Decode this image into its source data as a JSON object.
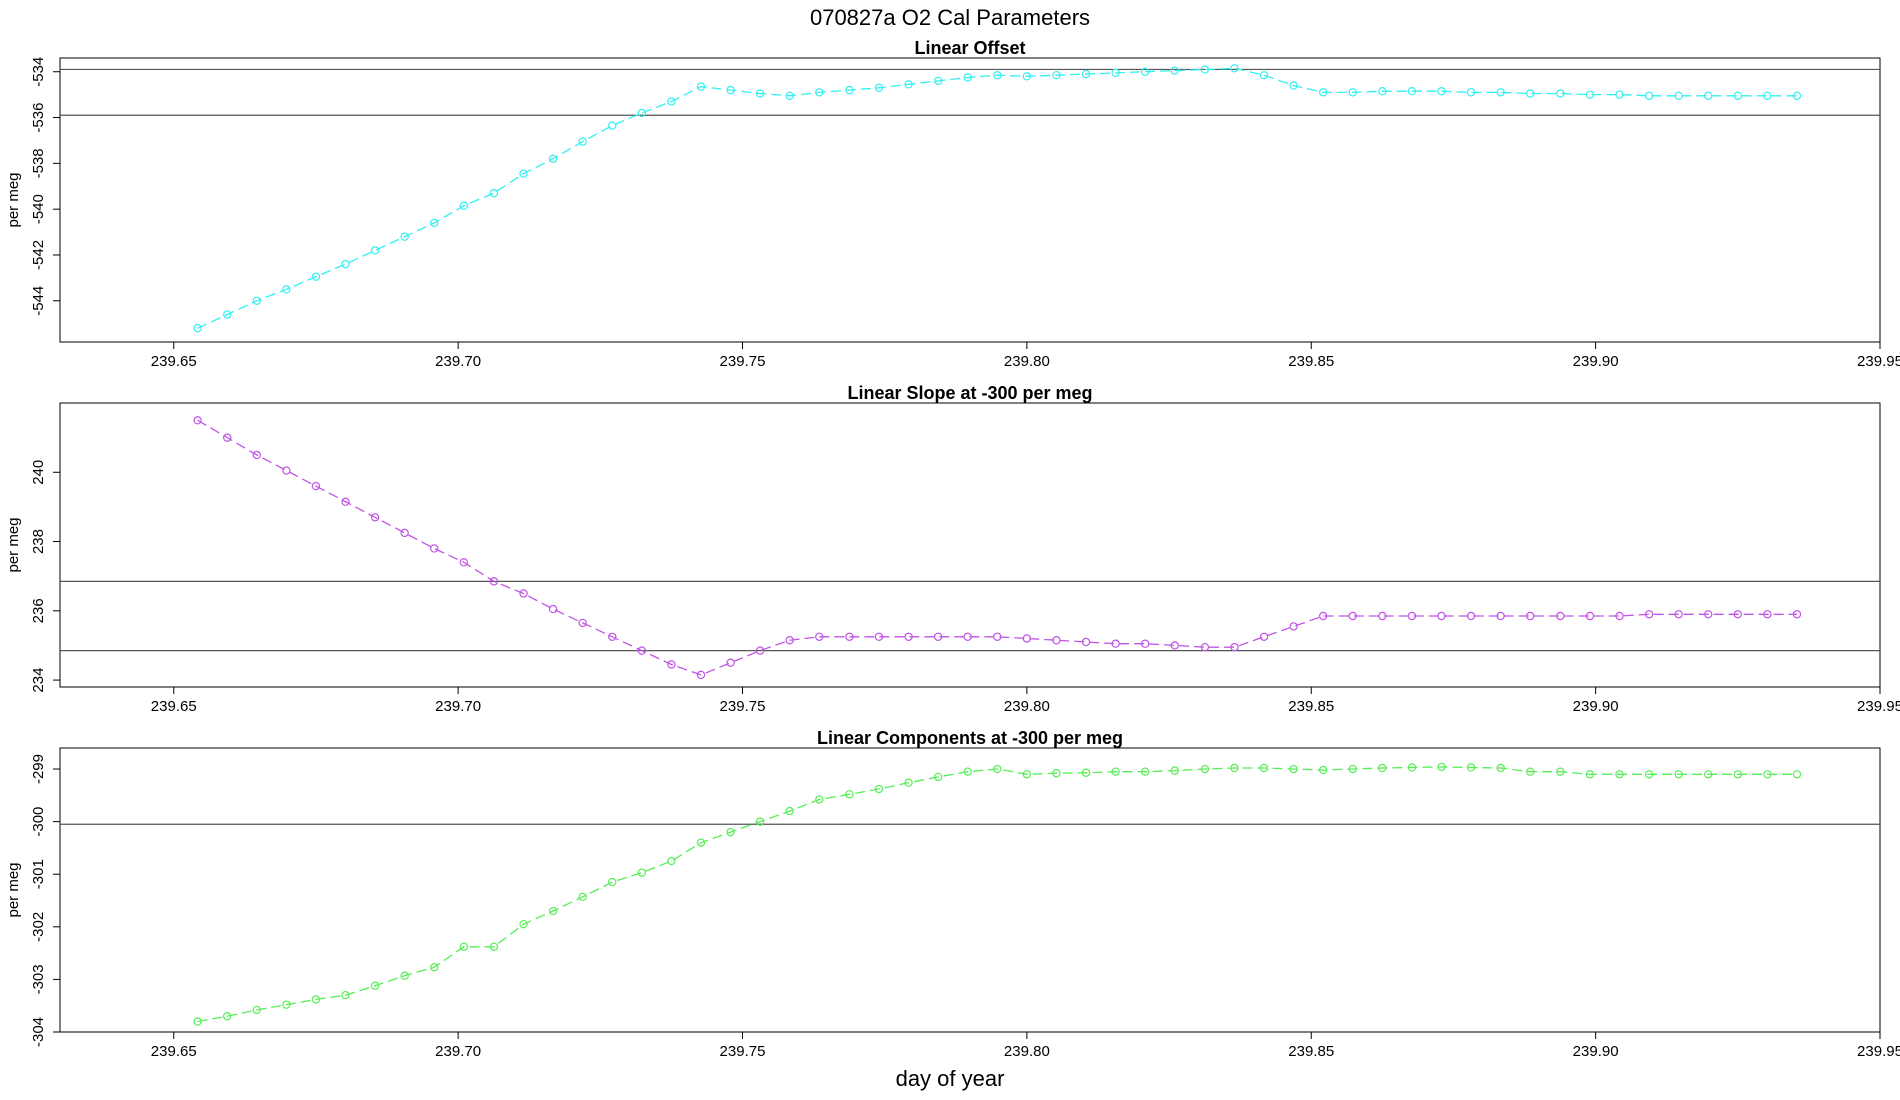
{
  "figure": {
    "title": "070827a   O2 Cal Parameters",
    "xlabel": "day of year"
  },
  "chart_data": [
    {
      "type": "line",
      "title": "Linear Offset",
      "ylabel": "per meg",
      "color": "#33f0f0",
      "xlim": [
        239.63,
        239.95
      ],
      "ylim": [
        -545.8,
        -533.4
      ],
      "xticks": [
        "239.65",
        "239.70",
        "239.75",
        "239.80",
        "239.85",
        "239.90",
        "239.95"
      ],
      "yticks": [
        "-544",
        "-542",
        "-540",
        "-538",
        "-536",
        "-534"
      ],
      "hlines": [
        -533.9,
        -535.9
      ],
      "x": [
        239.6542,
        239.6594,
        239.6646,
        239.6698,
        239.675,
        239.6802,
        239.6854,
        239.6906,
        239.6958,
        239.701,
        239.7063,
        239.7115,
        239.7167,
        239.7219,
        239.7271,
        239.7323,
        239.7375,
        239.7427,
        239.7479,
        239.7531,
        239.7583,
        239.7635,
        239.7688,
        239.774,
        239.7792,
        239.7844,
        239.7896,
        239.7948,
        239.8,
        239.8052,
        239.8104,
        239.8156,
        239.8208,
        239.826,
        239.8313,
        239.8365,
        239.8417,
        239.8469,
        239.8521,
        239.8573,
        239.8625,
        239.8677,
        239.8729,
        239.8781,
        239.8833,
        239.8885,
        239.8938,
        239.899,
        239.9042,
        239.9094,
        239.9146,
        239.9198,
        239.925,
        239.9302,
        239.9354
      ],
      "y": [
        -545.2,
        -544.6,
        -544.0,
        -543.5,
        -542.95,
        -542.4,
        -541.8,
        -541.2,
        -540.6,
        -539.85,
        -539.3,
        -538.45,
        -537.8,
        -537.05,
        -536.35,
        -535.8,
        -535.3,
        -534.65,
        -534.8,
        -534.95,
        -535.05,
        -534.9,
        -534.8,
        -534.7,
        -534.55,
        -534.4,
        -534.25,
        -534.15,
        -534.2,
        -534.15,
        -534.1,
        -534.05,
        -534.0,
        -533.95,
        -533.9,
        -533.85,
        -534.15,
        -534.6,
        -534.9,
        -534.9,
        -534.85,
        -534.85,
        -534.85,
        -534.9,
        -534.9,
        -534.95,
        -534.95,
        -535.0,
        -535.0,
        -535.05,
        -535.05,
        -535.05,
        -535.05,
        -535.05,
        -535.05
      ]
    },
    {
      "type": "line",
      "title": "Linear Slope at -300 per meg",
      "ylabel": "per meg",
      "color": "#c154e6",
      "xlim": [
        239.63,
        239.95
      ],
      "ylim": [
        233.8,
        242.0
      ],
      "xticks": [
        "239.65",
        "239.70",
        "239.75",
        "239.80",
        "239.85",
        "239.90",
        "239.95"
      ],
      "yticks": [
        "234",
        "236",
        "238",
        "240"
      ],
      "hlines": [
        236.85,
        234.85
      ],
      "x": [
        239.6542,
        239.6594,
        239.6646,
        239.6698,
        239.675,
        239.6802,
        239.6854,
        239.6906,
        239.6958,
        239.701,
        239.7063,
        239.7115,
        239.7167,
        239.7219,
        239.7271,
        239.7323,
        239.7375,
        239.7427,
        239.7479,
        239.7531,
        239.7583,
        239.7635,
        239.7688,
        239.774,
        239.7792,
        239.7844,
        239.7896,
        239.7948,
        239.8,
        239.8052,
        239.8104,
        239.8156,
        239.8208,
        239.826,
        239.8313,
        239.8365,
        239.8417,
        239.8469,
        239.8521,
        239.8573,
        239.8625,
        239.8677,
        239.8729,
        239.8781,
        239.8833,
        239.8885,
        239.8938,
        239.899,
        239.9042,
        239.9094,
        239.9146,
        239.9198,
        239.925,
        239.9302,
        239.9354
      ],
      "y": [
        241.5,
        241.0,
        240.5,
        240.05,
        239.6,
        239.15,
        238.7,
        238.25,
        237.8,
        237.4,
        236.85,
        236.5,
        236.05,
        235.65,
        235.25,
        234.85,
        234.45,
        234.15,
        234.5,
        234.85,
        235.15,
        235.25,
        235.25,
        235.25,
        235.25,
        235.25,
        235.25,
        235.25,
        235.2,
        235.15,
        235.1,
        235.05,
        235.05,
        235.0,
        234.95,
        234.95,
        235.25,
        235.55,
        235.85,
        235.85,
        235.85,
        235.85,
        235.85,
        235.85,
        235.85,
        235.85,
        235.85,
        235.85,
        235.85,
        235.9,
        235.9,
        235.9,
        235.9,
        235.9,
        235.9
      ]
    },
    {
      "type": "line",
      "title": "Linear Components at -300 per meg",
      "ylabel": "per meg",
      "color": "#55ee55",
      "xlim": [
        239.63,
        239.95
      ],
      "ylim": [
        -304.0,
        -298.6
      ],
      "xticks": [
        "239.65",
        "239.70",
        "239.75",
        "239.80",
        "239.85",
        "239.90",
        "239.95"
      ],
      "yticks": [
        "-304",
        "-303",
        "-302",
        "-301",
        "-300",
        "-299"
      ],
      "hlines": [
        -300.05
      ],
      "x": [
        239.6542,
        239.6594,
        239.6646,
        239.6698,
        239.675,
        239.6802,
        239.6854,
        239.6906,
        239.6958,
        239.701,
        239.7063,
        239.7115,
        239.7167,
        239.7219,
        239.7271,
        239.7323,
        239.7375,
        239.7427,
        239.7479,
        239.7531,
        239.7583,
        239.7635,
        239.7688,
        239.774,
        239.7792,
        239.7844,
        239.7896,
        239.7948,
        239.8,
        239.8052,
        239.8104,
        239.8156,
        239.8208,
        239.826,
        239.8313,
        239.8365,
        239.8417,
        239.8469,
        239.8521,
        239.8573,
        239.8625,
        239.8677,
        239.8729,
        239.8781,
        239.8833,
        239.8885,
        239.8938,
        239.899,
        239.9042,
        239.9094,
        239.9146,
        239.9198,
        239.925,
        239.9302,
        239.9354
      ],
      "y": [
        -303.8,
        -303.7,
        -303.58,
        -303.48,
        -303.38,
        -303.3,
        -303.12,
        -302.93,
        -302.77,
        -302.38,
        -302.38,
        -301.95,
        -301.7,
        -301.43,
        -301.15,
        -300.97,
        -300.75,
        -300.4,
        -300.2,
        -300.0,
        -299.8,
        -299.58,
        -299.48,
        -299.38,
        -299.26,
        -299.15,
        -299.05,
        -299.0,
        -299.1,
        -299.08,
        -299.07,
        -299.05,
        -299.05,
        -299.03,
        -299.0,
        -298.98,
        -298.98,
        -299.0,
        -299.02,
        -299.0,
        -298.98,
        -298.97,
        -298.96,
        -298.97,
        -298.98,
        -299.05,
        -299.05,
        -299.1,
        -299.1,
        -299.1,
        -299.1,
        -299.1,
        -299.1,
        -299.1,
        -299.1
      ]
    }
  ]
}
